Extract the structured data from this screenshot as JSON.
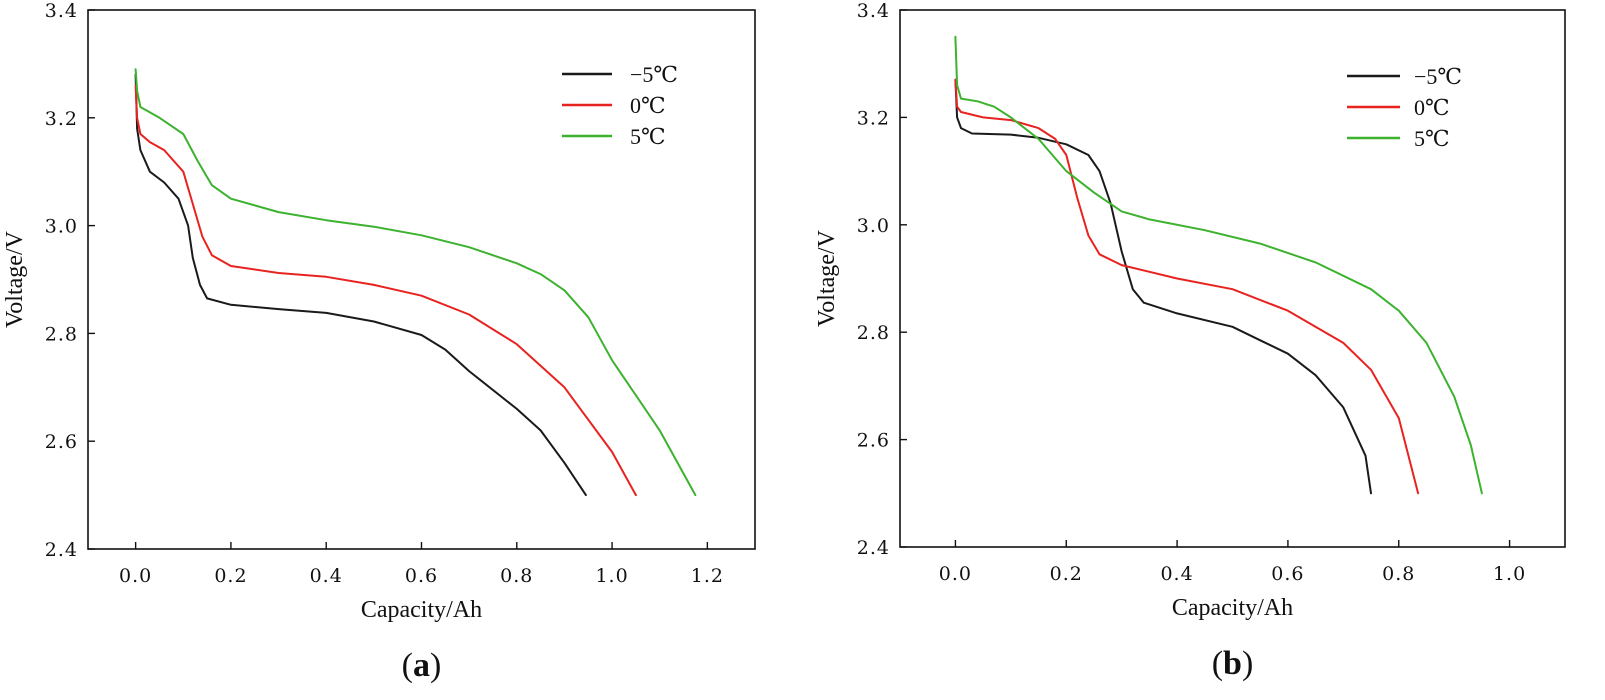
{
  "colors": {
    "series_-5": "#1a1a1a",
    "series_0": "#e8231f",
    "series_5": "#3cb22f",
    "axis": "#111111"
  },
  "chart_data": [
    {
      "panel": "(a)",
      "panel_open": "(",
      "panel_letter": "a",
      "panel_close": ")",
      "type": "line",
      "xlabel": "Capacity/Ah",
      "ylabel": "Voltage/V",
      "xlim": [
        -0.1,
        1.3
      ],
      "ylim": [
        2.4,
        3.4
      ],
      "xticks": [
        0.0,
        0.2,
        0.4,
        0.6,
        0.8,
        1.0,
        1.2
      ],
      "xtick_labels": [
        "0.0",
        "0.2",
        "0.4",
        "0.6",
        "0.8",
        "1.0",
        "1.2"
      ],
      "yticks": [
        2.4,
        2.6,
        2.8,
        3.0,
        3.2,
        3.4
      ],
      "ytick_labels": [
        "2.4",
        "2.6",
        "2.8",
        "3.0",
        "3.2",
        "3.4"
      ],
      "legend_position": "top-right",
      "grid": false,
      "series": [
        {
          "name": "−5℃",
          "color_key": "series_-5",
          "points": [
            [
              0.0,
              3.28
            ],
            [
              0.003,
              3.18
            ],
            [
              0.01,
              3.14
            ],
            [
              0.03,
              3.1
            ],
            [
              0.06,
              3.08
            ],
            [
              0.09,
              3.05
            ],
            [
              0.11,
              3.0
            ],
            [
              0.12,
              2.94
            ],
            [
              0.135,
              2.89
            ],
            [
              0.15,
              2.865
            ],
            [
              0.2,
              2.853
            ],
            [
              0.3,
              2.845
            ],
            [
              0.4,
              2.838
            ],
            [
              0.5,
              2.822
            ],
            [
              0.6,
              2.797
            ],
            [
              0.65,
              2.77
            ],
            [
              0.7,
              2.73
            ],
            [
              0.8,
              2.66
            ],
            [
              0.85,
              2.62
            ],
            [
              0.9,
              2.56
            ],
            [
              0.945,
              2.5
            ]
          ]
        },
        {
          "name": "0℃",
          "color_key": "series_0",
          "points": [
            [
              0.0,
              3.26
            ],
            [
              0.003,
              3.2
            ],
            [
              0.01,
              3.17
            ],
            [
              0.03,
              3.155
            ],
            [
              0.06,
              3.14
            ],
            [
              0.1,
              3.1
            ],
            [
              0.12,
              3.04
            ],
            [
              0.14,
              2.98
            ],
            [
              0.16,
              2.945
            ],
            [
              0.2,
              2.925
            ],
            [
              0.3,
              2.912
            ],
            [
              0.4,
              2.905
            ],
            [
              0.5,
              2.89
            ],
            [
              0.6,
              2.87
            ],
            [
              0.7,
              2.835
            ],
            [
              0.8,
              2.78
            ],
            [
              0.9,
              2.7
            ],
            [
              1.0,
              2.58
            ],
            [
              1.05,
              2.5
            ]
          ]
        },
        {
          "name": "5℃",
          "color_key": "series_5",
          "points": [
            [
              0.0,
              3.29
            ],
            [
              0.003,
              3.25
            ],
            [
              0.01,
              3.22
            ],
            [
              0.05,
              3.2
            ],
            [
              0.1,
              3.17
            ],
            [
              0.13,
              3.12
            ],
            [
              0.16,
              3.075
            ],
            [
              0.2,
              3.05
            ],
            [
              0.3,
              3.025
            ],
            [
              0.4,
              3.01
            ],
            [
              0.5,
              2.998
            ],
            [
              0.6,
              2.982
            ],
            [
              0.7,
              2.96
            ],
            [
              0.8,
              2.93
            ],
            [
              0.85,
              2.91
            ],
            [
              0.9,
              2.88
            ],
            [
              0.95,
              2.83
            ],
            [
              1.0,
              2.75
            ],
            [
              1.1,
              2.62
            ],
            [
              1.175,
              2.5
            ]
          ]
        }
      ]
    },
    {
      "panel": "(b)",
      "panel_open": "(",
      "panel_letter": "b",
      "panel_close": ")",
      "type": "line",
      "xlabel": "Capacity/Ah",
      "ylabel": "Voltage/V",
      "xlim": [
        -0.1,
        1.1
      ],
      "ylim": [
        2.4,
        3.4
      ],
      "xticks": [
        0.0,
        0.2,
        0.4,
        0.6,
        0.8,
        1.0
      ],
      "xtick_labels": [
        "0.0",
        "0.2",
        "0.4",
        "0.6",
        "0.8",
        "1.0"
      ],
      "yticks": [
        2.4,
        2.6,
        2.8,
        3.0,
        3.2,
        3.4
      ],
      "ytick_labels": [
        "2.4",
        "2.6",
        "2.8",
        "3.0",
        "3.2",
        "3.4"
      ],
      "legend_position": "top-right",
      "grid": false,
      "series": [
        {
          "name": "−5℃",
          "color_key": "series_-5",
          "points": [
            [
              0.0,
              3.27
            ],
            [
              0.003,
              3.2
            ],
            [
              0.01,
              3.18
            ],
            [
              0.03,
              3.17
            ],
            [
              0.1,
              3.168
            ],
            [
              0.15,
              3.162
            ],
            [
              0.2,
              3.15
            ],
            [
              0.24,
              3.13
            ],
            [
              0.26,
              3.1
            ],
            [
              0.28,
              3.04
            ],
            [
              0.3,
              2.95
            ],
            [
              0.32,
              2.88
            ],
            [
              0.34,
              2.855
            ],
            [
              0.4,
              2.835
            ],
            [
              0.5,
              2.81
            ],
            [
              0.55,
              2.785
            ],
            [
              0.6,
              2.76
            ],
            [
              0.65,
              2.72
            ],
            [
              0.7,
              2.66
            ],
            [
              0.74,
              2.57
            ],
            [
              0.75,
              2.5
            ]
          ]
        },
        {
          "name": "0℃",
          "color_key": "series_0",
          "points": [
            [
              0.0,
              3.27
            ],
            [
              0.003,
              3.22
            ],
            [
              0.01,
              3.21
            ],
            [
              0.05,
              3.2
            ],
            [
              0.1,
              3.195
            ],
            [
              0.15,
              3.18
            ],
            [
              0.18,
              3.16
            ],
            [
              0.2,
              3.13
            ],
            [
              0.22,
              3.05
            ],
            [
              0.24,
              2.98
            ],
            [
              0.26,
              2.945
            ],
            [
              0.3,
              2.925
            ],
            [
              0.4,
              2.9
            ],
            [
              0.5,
              2.88
            ],
            [
              0.6,
              2.84
            ],
            [
              0.7,
              2.78
            ],
            [
              0.75,
              2.73
            ],
            [
              0.8,
              2.64
            ],
            [
              0.835,
              2.5
            ]
          ]
        },
        {
          "name": "5℃",
          "color_key": "series_5",
          "points": [
            [
              0.0,
              3.35
            ],
            [
              0.003,
              3.26
            ],
            [
              0.01,
              3.235
            ],
            [
              0.04,
              3.23
            ],
            [
              0.07,
              3.22
            ],
            [
              0.1,
              3.2
            ],
            [
              0.15,
              3.16
            ],
            [
              0.2,
              3.1
            ],
            [
              0.25,
              3.06
            ],
            [
              0.3,
              3.025
            ],
            [
              0.35,
              3.01
            ],
            [
              0.45,
              2.99
            ],
            [
              0.55,
              2.965
            ],
            [
              0.65,
              2.93
            ],
            [
              0.75,
              2.88
            ],
            [
              0.8,
              2.84
            ],
            [
              0.85,
              2.78
            ],
            [
              0.9,
              2.68
            ],
            [
              0.93,
              2.59
            ],
            [
              0.95,
              2.5
            ]
          ]
        }
      ]
    }
  ]
}
